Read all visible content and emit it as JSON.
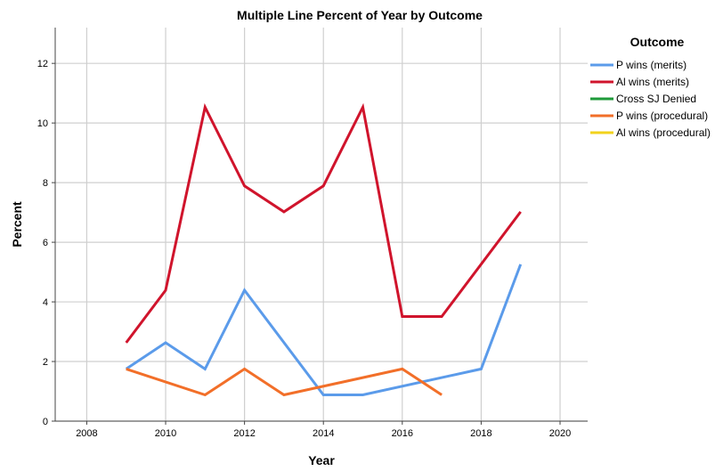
{
  "chart_data": {
    "type": "line",
    "title": "Multiple Line Percent of Year by Outcome",
    "xlabel": "Year",
    "ylabel": "Percent",
    "xlim": [
      2007.2,
      2020.7
    ],
    "ylim": [
      0,
      13.2
    ],
    "x_ticks": [
      2008,
      2010,
      2012,
      2014,
      2016,
      2018,
      2020
    ],
    "y_ticks": [
      0,
      2,
      4,
      6,
      8,
      10,
      12
    ],
    "grid": true,
    "legend_title": "Outcome",
    "legend_position": "right",
    "series": [
      {
        "name": "P wins (merits)",
        "color": "#5b9bea",
        "points": [
          [
            2009,
            1.75
          ],
          [
            2010,
            2.63
          ],
          [
            2011,
            1.75
          ],
          [
            2012,
            4.39
          ],
          [
            2014,
            0.88
          ],
          [
            2015,
            0.88
          ],
          [
            2018,
            1.75
          ],
          [
            2019,
            5.26
          ]
        ]
      },
      {
        "name": "Al wins (merits)",
        "color": "#d0142c",
        "points": [
          [
            2009,
            2.63
          ],
          [
            2010,
            4.39
          ],
          [
            2011,
            10.53
          ],
          [
            2012,
            7.89
          ],
          [
            2013,
            7.02
          ],
          [
            2014,
            7.89
          ],
          [
            2015,
            10.53
          ],
          [
            2016,
            3.51
          ],
          [
            2017,
            3.51
          ],
          [
            2019,
            7.02
          ]
        ]
      },
      {
        "name": "Cross SJ Denied",
        "color": "#1f9a3a",
        "points": []
      },
      {
        "name": "P wins (procedural)",
        "color": "#f26f29",
        "points": [
          [
            2009,
            1.75
          ],
          [
            2011,
            0.88
          ],
          [
            2012,
            1.75
          ],
          [
            2013,
            0.88
          ],
          [
            2016,
            1.75
          ],
          [
            2017,
            0.88
          ]
        ]
      },
      {
        "name": "Al wins (procedural)",
        "color": "#f2d21c",
        "points": []
      }
    ]
  }
}
